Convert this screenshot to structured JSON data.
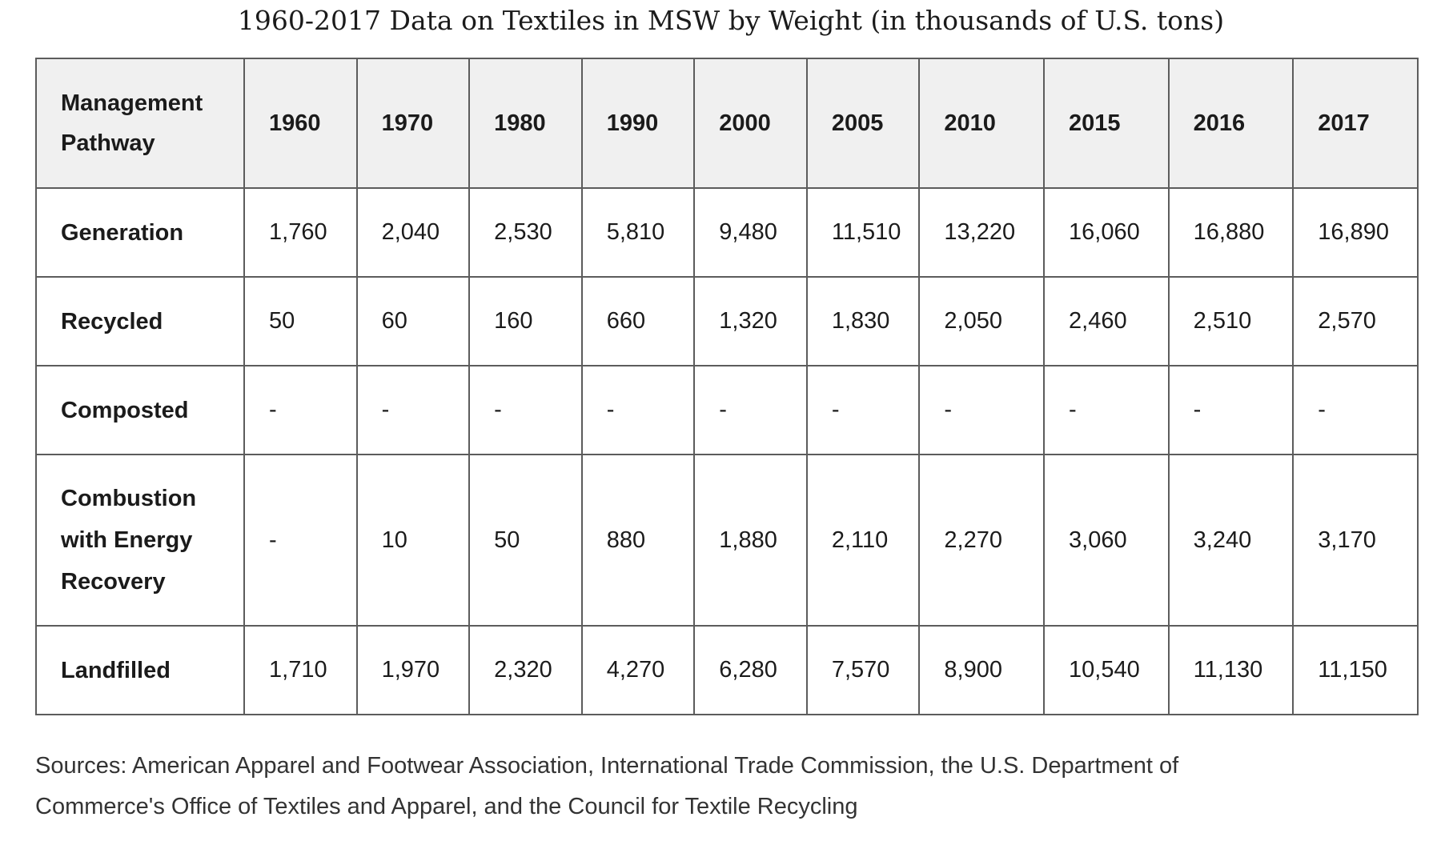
{
  "title": "1960-2017 Data on Textiles in MSW by Weight (in thousands of U.S. tons)",
  "table": {
    "header_first": "Management Pathway",
    "years": [
      "1960",
      "1970",
      "1980",
      "1990",
      "2000",
      "2005",
      "2010",
      "2015",
      "2016",
      "2017"
    ],
    "rows": [
      {
        "label": "Generation",
        "values": [
          "1,760",
          "2,040",
          "2,530",
          "5,810",
          "9,480",
          "11,510",
          "13,220",
          "16,060",
          "16,880",
          "16,890"
        ]
      },
      {
        "label": "Recycled",
        "values": [
          "50",
          "60",
          "160",
          "660",
          "1,320",
          "1,830",
          "2,050",
          "2,460",
          "2,510",
          "2,570"
        ]
      },
      {
        "label": "Composted",
        "values": [
          "-",
          "-",
          "-",
          "-",
          "-",
          "-",
          "-",
          "-",
          "-",
          "-"
        ]
      },
      {
        "label": "Combustion with Energy Recovery",
        "values": [
          "-",
          "10",
          "50",
          "880",
          "1,880",
          "2,110",
          "2,270",
          "3,060",
          "3,240",
          "3,170"
        ]
      },
      {
        "label": "Landfilled",
        "values": [
          "1,710",
          "1,970",
          "2,320",
          "4,270",
          "6,280",
          "7,570",
          "8,900",
          "10,540",
          "11,130",
          "11,150"
        ]
      }
    ]
  },
  "sources": "Sources: American Apparel and Footwear Association, International Trade Commission, the U.S. Department of Commerce's Office of Textiles and Apparel, and the Council for Textile Recycling"
}
